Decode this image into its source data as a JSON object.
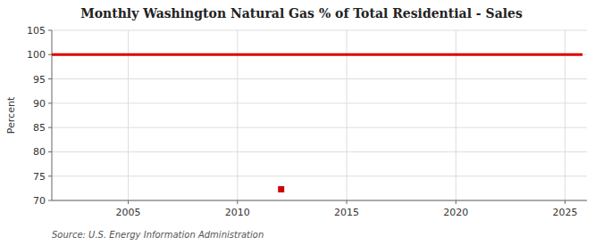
{
  "chart_data": {
    "type": "line",
    "title": "Monthly Washington Natural Gas % of Total Residential - Sales",
    "ylabel": "Percent",
    "source": "Source: U.S. Energy Information Administration",
    "xlim": [
      2001.5,
      2026
    ],
    "ylim": [
      70,
      105
    ],
    "xticks": [
      2005,
      2010,
      2015,
      2020,
      2025
    ],
    "yticks": [
      70,
      75,
      80,
      85,
      90,
      95,
      100,
      105
    ],
    "grid": true,
    "series": [
      {
        "type": "line",
        "color": "#dd0000",
        "x": [
          2001.5,
          2025.8
        ],
        "values": [
          100,
          100
        ]
      },
      {
        "type": "scatter",
        "color": "#cc0000",
        "marker": "square",
        "x": [
          2012
        ],
        "values": [
          72.3
        ]
      }
    ]
  }
}
